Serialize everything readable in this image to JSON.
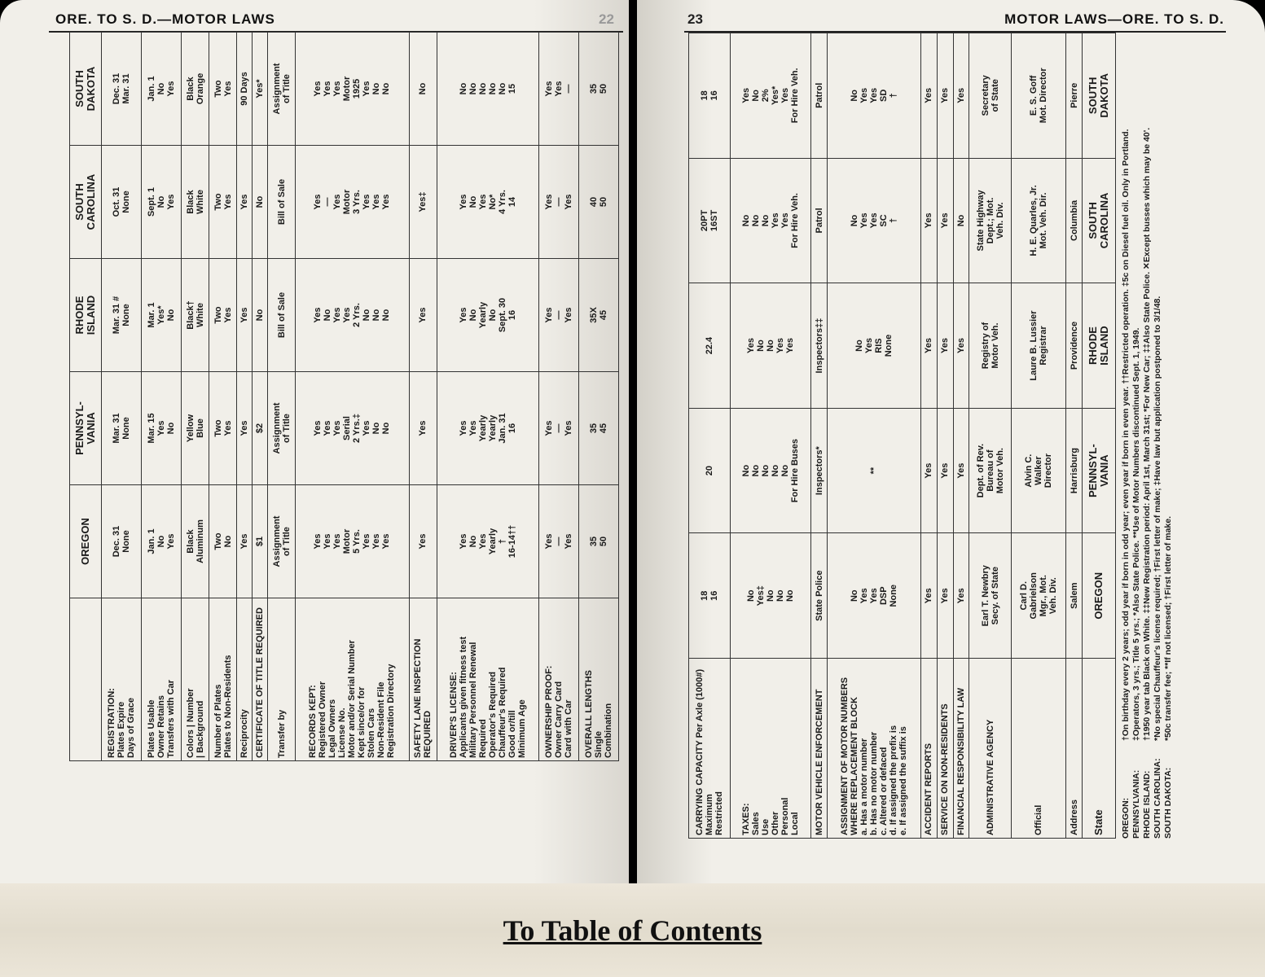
{
  "left_page": {
    "header": "ORE. TO S. D.—MOTOR LAWS",
    "page_number": "22",
    "table": {
      "rows": [
        [
          "",
          "OREGON",
          "PENNSYL-\nVANIA",
          "RHODE\nISLAND",
          "SOUTH\nCAROLINA",
          "SOUTH\nDAKOTA"
        ],
        [
          "REGISTRATION:\nPlates Expire\nDays of Grace",
          "Dec. 31\nNone",
          "Mar. 31\nNone",
          "Mar. 31 #\nNone",
          "Oct. 31\nNone",
          "Dec. 31\nMar. 31"
        ],
        [
          "Plates Usable\nOwner Retains\nTransfers with Car",
          "Jan. 1\nNo\nYes",
          "Mar. 15\nYes\nNo",
          "Mar. 1\nYes*\nNo",
          "Sept. 1\nNo\nYes",
          "Jan. 1\nNo\nYes"
        ],
        [
          "Colors | Number\n| Background",
          "Black\nAluminum",
          "Yellow\nBlue",
          "Black†\nWhite",
          "Black\nWhite",
          "Black\nOrange"
        ],
        [
          "Number of Plates\nPlates to Non-Residents",
          "Two\nNo",
          "Two\nYes",
          "Two\nYes",
          "Two\nYes",
          "Two\nYes"
        ],
        [
          "Reciprocity",
          "Yes",
          "Yes",
          "Yes",
          "Yes",
          "90 Days"
        ],
        [
          "CERTIFICATE OF TITLE REQUIRED",
          "$1",
          "$2",
          "No",
          "No",
          "Yes*"
        ],
        [
          "Transfer by",
          "Assignment\nof Title",
          "Assignment\nof Title",
          "Bill of Sale",
          "Bill of Sale",
          "Assignment\nof Title"
        ],
        [
          "RECORDS KEPT:\nRegistered Owner\nLegal Owners\nLicense No.\nMotor and/or Serial Number\nKept since/or for\nStolen Cars\nNon-Resident File\nRegistration Directory",
          "Yes\nYes\nYes\nMotor\n5 Yrs.\nYes\nYes\nYes",
          "Yes\nYes\nYes\nSerial\n2 Yrs.‡\nYes\nNo\nNo",
          "Yes\nNo\nYes\nYes\n2 Yrs.\nNo\nNo\nNo",
          "Yes\n—\nYes\nMotor\n3 Yrs.\nYes\nYes\nYes",
          "Yes\nYes\nYes\nMotor\n1925\nYes\nNo\nNo"
        ],
        [
          "SAFETY LANE INSPECTION REQUIRED",
          "Yes",
          "Yes",
          "Yes",
          "Yes‡",
          "No"
        ],
        [
          "DRIVER'S LICENSE:\nApplicants given fitness test\nMilitary Personnel Renewal Required\nOperator's Required\nChauffeur's Required\nGood or/till\nMinimum Age",
          "Yes\nNo\nYes\nYearly\n†\n16-14††",
          "Yes\nYes\nYearly\nYearly\nJan. 31\n16",
          "Yes\nNo\nYearly\nNo\nSept. 30\n16",
          "Yes\nNo\nYes\nNo*\n4 Yrs.\n14",
          "No\nNo\nNo\nNo\nNo\n15"
        ],
        [
          "OWNERSHIP PROOF:\nOwner Carry Card\nCard with Car",
          "Yes\n—\nYes",
          "Yes\n—\nYes",
          "Yes\n—\nYes",
          "Yes\n—\nYes",
          "Yes\nYes\n—"
        ],
        [
          "OVERALL LENGTHS\nSingle\nCombination",
          "35\n50",
          "35\n45",
          "35X\n45",
          "40\n50",
          "35\n50"
        ]
      ]
    }
  },
  "right_page": {
    "header": "MOTOR LAWS—ORE. TO S. D.",
    "page_number": "23",
    "table": {
      "rows": [
        [
          "CARRYING CAPACITY Per Axle (1000#)\nMaximum\nRestricted",
          "18\n16",
          "20",
          "22.4",
          "20PT\n16ST",
          "18\n16"
        ],
        [
          "TAXES:\nSales\nUse\nOther\nPersonal\nLocal",
          "No\nYes‡\nNo\nNo\nNo",
          "No\nNo\nNo\nNo\nNo\nFor Hire Buses",
          "Yes\nNo\nNo\nYes\nYes",
          "No\nNo\nNo\nYes\nYes\nFor Hire Veh.",
          "Yes\nNo\n2%\nYes*\nYes\nFor Hire Veh."
        ],
        [
          "MOTOR VEHICLE ENFORCEMENT",
          "State Police",
          "Inspectors*",
          "Inspectors‡‡",
          "Patrol",
          "Patrol"
        ],
        [
          "ASSIGNMENT OF MOTOR NUMBERS\nWHERE REPLACEMENT BLOCK\na. Has a motor number\nb. Has no motor number\nc. Altered or defaced\nd. If assigned the prefix is\ne. If assigned the suffix is",
          "No\nYes\nYes\nDSP\nNone",
          "**",
          "No\nYes\nRIS\nNone",
          "No\nYes\nYes\nSC\n†",
          "No\nYes\nYes\nSD\n†"
        ],
        [
          "ACCIDENT REPORTS",
          "Yes",
          "Yes",
          "Yes",
          "Yes",
          "Yes"
        ],
        [
          "SERVICE ON NON-RESIDENTS",
          "Yes",
          "Yes",
          "Yes",
          "Yes",
          "Yes"
        ],
        [
          "FINANCIAL RESPONSIBILITY LAW",
          "Yes",
          "Yes",
          "Yes",
          "No",
          "Yes"
        ],
        [
          "ADMINISTRATIVE AGENCY",
          "Earl T. Newbry\nSecy. of State",
          "Dept. of Rev.\nBureau of\nMotor Veh.",
          "Registry of\nMotor Veh.",
          "State Highway\nDept.; Mot.\nVeh. Div.",
          "Secretary\nof State"
        ],
        [
          "Official",
          "Carl D.\nGabrielson\nMgr., Mot.\nVeh. Div.",
          "Alvin C.\nWalker\nDirector",
          "Laure B. Lussier\nRegistrar",
          "H. E. Quarles, Jr.\nMot. Veh. Dir.",
          "E. S. Goff\nMot. Director"
        ],
        [
          "Address",
          "Salem",
          "Harrisburg",
          "Providence",
          "Columbia",
          "Pierre"
        ],
        [
          "State",
          "OREGON",
          "PENNSYL-\nVANIA",
          "RHODE\nISLAND",
          "SOUTH\nCAROLINA",
          "SOUTH\nDAKOTA"
        ]
      ]
    },
    "footnotes": [
      {
        "label": "OREGON:",
        "text": "†On birthday every 2 years; odd year if born in odd year; even year if born in even year. ††Restricted operation. ‡5c on Diesel fuel oil. Only in Portland."
      },
      {
        "label": "PENNSYLVANIA:",
        "text": "‡Operators, 3 yrs.; Title 5 yrs.; *Also State Police. **Use of Motor Numbers discontinued Sept. 1, 1949."
      },
      {
        "label": "RHODE ISLAND:",
        "text": "†1950 year tab Black on White. ‡‡New Registration period: April 1st, March 31st; *For New Car; ‡‡Also State Police. ✕Except busses which may be 40'."
      },
      {
        "label": "SOUTH CAROLINA:",
        "text": "*No special Chauffeur's license required; †First letter of make; ‡Have law but application postponed to 3/1/48."
      },
      {
        "label": "SOUTH DAKOTA:",
        "text": "*50c transfer fee; **If not licensed; †First letter of make."
      }
    ]
  },
  "link": "To Table of Contents"
}
